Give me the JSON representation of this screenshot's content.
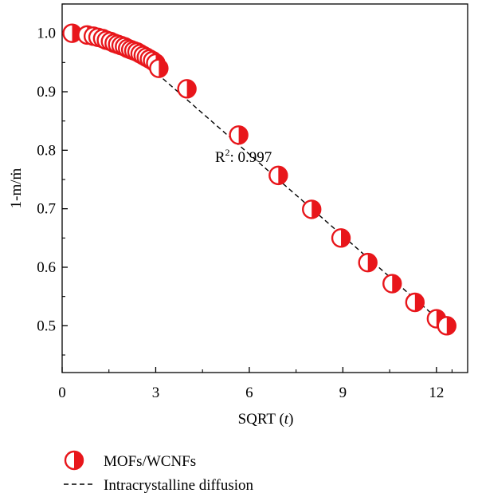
{
  "chart_data": {
    "type": "scatter",
    "xlabel_prefix": "SQRT (",
    "xlabel_var": "t",
    "xlabel_suffix": ")",
    "ylabel": "1-m/ṁ",
    "xlim": [
      0,
      13.0
    ],
    "ylim": [
      0.42,
      1.05
    ],
    "xticks": [
      0,
      3,
      6,
      9,
      12
    ],
    "yticks": [
      0.5,
      0.6,
      0.7,
      0.8,
      0.9,
      1.0
    ],
    "ytick_labels": [
      "0.5",
      "0.6",
      "0.7",
      "0.8",
      "0.9",
      "1.0"
    ],
    "annotation": {
      "base": "R",
      "sup": "2",
      "text": ": 0.997"
    },
    "series": [
      {
        "name": "MOFs/WCNFs",
        "style": "half-filled-circle",
        "color": "#e8161b",
        "x": [
          0.32,
          0.8,
          1.0,
          1.15,
          1.3,
          1.42,
          1.55,
          1.67,
          1.78,
          1.89,
          2.0,
          2.1,
          2.2,
          2.3,
          2.4,
          2.5,
          2.6,
          2.7,
          2.8,
          2.9,
          3.0,
          3.1,
          4.0,
          5.66,
          6.93,
          8.0,
          8.94,
          9.8,
          10.58,
          11.31,
          12.0,
          12.33
        ],
        "y": [
          1.0,
          0.997,
          0.995,
          0.993,
          0.991,
          0.988,
          0.986,
          0.983,
          0.981,
          0.979,
          0.977,
          0.974,
          0.972,
          0.97,
          0.968,
          0.965,
          0.962,
          0.959,
          0.956,
          0.953,
          0.949,
          0.94,
          0.905,
          0.826,
          0.757,
          0.699,
          0.65,
          0.608,
          0.572,
          0.54,
          0.512,
          0.5
        ]
      },
      {
        "name": "Intracrystalline diffusion",
        "style": "dashed-line",
        "color": "#000000",
        "x": [
          1.5,
          12.4
        ],
        "y": [
          1.003,
          0.495
        ]
      }
    ]
  }
}
